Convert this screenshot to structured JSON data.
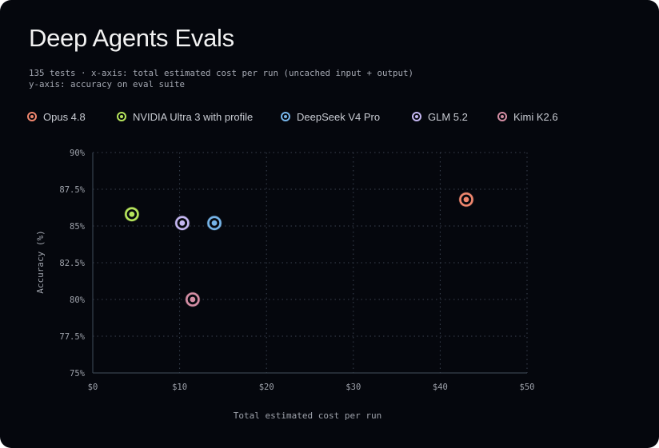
{
  "header": {
    "title": "Deep Agents Evals",
    "subtitle_line1": "135 tests · x-axis: total estimated cost per run (uncached input + output)",
    "subtitle_line2": "y-axis: accuracy on eval suite"
  },
  "colors": {
    "background": "#05070d",
    "axis": "#37424e",
    "grid": "#3a4250",
    "tick_text": "#9ea2ab"
  },
  "chart_data": {
    "type": "scatter",
    "xlabel": "Total estimated cost per run",
    "ylabel": "Accuracy (%)",
    "xlim": [
      0,
      50
    ],
    "ylim": [
      75,
      90
    ],
    "x_ticks": [
      0,
      10,
      20,
      30,
      40,
      50
    ],
    "x_tick_labels": [
      "$0",
      "$10",
      "$20",
      "$30",
      "$40",
      "$50"
    ],
    "y_ticks": [
      75,
      77.5,
      80,
      82.5,
      85,
      87.5,
      90
    ],
    "y_tick_labels": [
      "75%",
      "77.5%",
      "80%",
      "82.5%",
      "85%",
      "87.5%",
      "90%"
    ],
    "grid": true,
    "legend_position": "top",
    "series": [
      {
        "name": "Opus 4.8",
        "color": "#f0876e",
        "points": [
          {
            "x": 43.0,
            "y": 86.8
          }
        ]
      },
      {
        "name": "NVIDIA Ultra 3 with profile",
        "color": "#b6e45c",
        "points": [
          {
            "x": 4.5,
            "y": 85.8
          }
        ]
      },
      {
        "name": "DeepSeek V4 Pro",
        "color": "#76b4e8",
        "points": [
          {
            "x": 14.0,
            "y": 85.2
          }
        ]
      },
      {
        "name": "GLM 5.2",
        "color": "#c4b6f0",
        "points": [
          {
            "x": 10.3,
            "y": 85.2
          }
        ]
      },
      {
        "name": "Kimi K2.6",
        "color": "#d48ea4",
        "points": [
          {
            "x": 11.5,
            "y": 80.0
          }
        ]
      }
    ]
  }
}
